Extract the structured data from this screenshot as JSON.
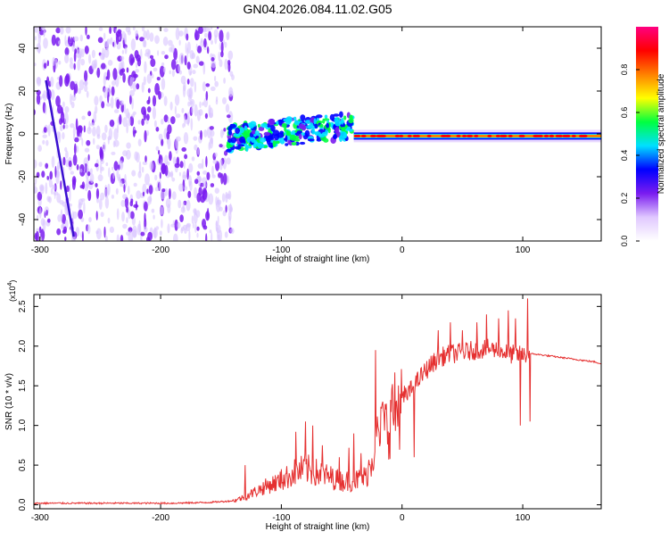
{
  "title": "GN04.2026.084.11.02.G05",
  "chart_data": [
    {
      "type": "heatmap",
      "title": "GN04.2026.084.11.02.G05",
      "xlabel": "Height of straight line (km)",
      "ylabel": "Frequency (Hz)",
      "xlim": [
        -305,
        165
      ],
      "ylim": [
        -50,
        50
      ],
      "xticks": [
        -300,
        -200,
        -100,
        0,
        100
      ],
      "yticks": [
        -40,
        -20,
        0,
        20,
        40
      ],
      "colorbar": {
        "label": "Normalized spectral amplitude",
        "range": [
          0,
          1
        ],
        "ticks": [
          "0.0",
          "0.2",
          "0.4",
          "0.6",
          "0.8"
        ],
        "colors": [
          "#ffffff",
          "#e0c8ff",
          "#7a1cf0",
          "#0000ff",
          "#00e0ff",
          "#00ff40",
          "#ffff00",
          "#ff8000",
          "#ff0000",
          "#ff0080"
        ]
      },
      "regions": [
        {
          "name": "noise",
          "x_range": [
            -305,
            -140
          ],
          "freq_range": [
            -50,
            50
          ],
          "amplitude": 0.1
        },
        {
          "name": "transition",
          "x_range": [
            -145,
            -40
          ],
          "center_freq_start": -2,
          "center_freq_end": 4,
          "amplitude": 0.45
        },
        {
          "name": "carrier",
          "x_range": [
            -40,
            165
          ],
          "center_freq": -1,
          "amplitude": 0.9
        }
      ],
      "streaks": [
        {
          "x_start": -295,
          "freq_start": 25,
          "x_end": -272,
          "freq_end": -48
        }
      ]
    },
    {
      "type": "line",
      "xlabel": "Height of straight line (km)",
      "ylabel": "SNR (10 * v/v)",
      "scale_label": "(x10",
      "scale_exp": "4",
      "scale_close": ")",
      "xlim": [
        -305,
        165
      ],
      "ylim": [
        -0.05,
        2.65
      ],
      "xticks": [
        -300,
        -200,
        -100,
        0,
        100
      ],
      "yticks": [
        "0.0",
        "0.5",
        "1.0",
        "1.5",
        "2.0",
        "2.5"
      ],
      "line_color": "#e53030",
      "series": [
        {
          "name": "SNR",
          "x": [
            -305,
            -280,
            -250,
            -220,
            -190,
            -160,
            -140,
            -130,
            -120,
            -110,
            -100,
            -90,
            -80,
            -70,
            -60,
            -50,
            -40,
            -30,
            -25,
            -20,
            -15,
            -10,
            -5,
            0,
            10,
            20,
            30,
            40,
            50,
            60,
            70,
            80,
            90,
            100,
            105,
            110,
            120,
            130,
            140,
            150,
            160,
            165
          ],
          "values": [
            0.02,
            0.02,
            0.02,
            0.02,
            0.02,
            0.03,
            0.05,
            0.1,
            0.18,
            0.25,
            0.3,
            0.4,
            0.45,
            0.4,
            0.35,
            0.3,
            0.3,
            0.35,
            0.6,
            0.85,
            0.95,
            1.05,
            1.2,
            1.3,
            1.5,
            1.7,
            1.85,
            1.9,
            1.92,
            1.95,
            1.97,
            1.95,
            1.9,
            1.88,
            1.9,
            1.9,
            1.88,
            1.86,
            1.84,
            1.82,
            1.8,
            1.78
          ]
        }
      ],
      "spikes": [
        {
          "x": -130,
          "value": 0.5
        },
        {
          "x": -100,
          "value": 0.45
        },
        {
          "x": -88,
          "value": 0.92
        },
        {
          "x": -80,
          "value": 1.05
        },
        {
          "x": -74,
          "value": 1.0
        },
        {
          "x": -66,
          "value": 0.75
        },
        {
          "x": -52,
          "value": 0.6
        },
        {
          "x": -44,
          "value": 0.72
        },
        {
          "x": -40,
          "value": 0.9
        },
        {
          "x": -34,
          "value": 0.65
        },
        {
          "x": -22,
          "value": 1.95
        },
        {
          "x": -16,
          "value": 1.3
        },
        {
          "x": -8,
          "value": 1.52
        },
        {
          "x": 2,
          "value": 1.5
        },
        {
          "x": 10,
          "value": 0.6
        },
        {
          "x": 30,
          "value": 2.2
        },
        {
          "x": 40,
          "value": 2.3
        },
        {
          "x": 50,
          "value": 2.2
        },
        {
          "x": 62,
          "value": 2.3
        },
        {
          "x": 70,
          "value": 2.4
        },
        {
          "x": 80,
          "value": 2.35
        },
        {
          "x": 88,
          "value": 2.45
        },
        {
          "x": 94,
          "value": 2.35
        },
        {
          "x": 98,
          "value": 1.0
        },
        {
          "x": 104,
          "value": 2.6
        },
        {
          "x": 106,
          "value": 1.05
        }
      ]
    }
  ]
}
